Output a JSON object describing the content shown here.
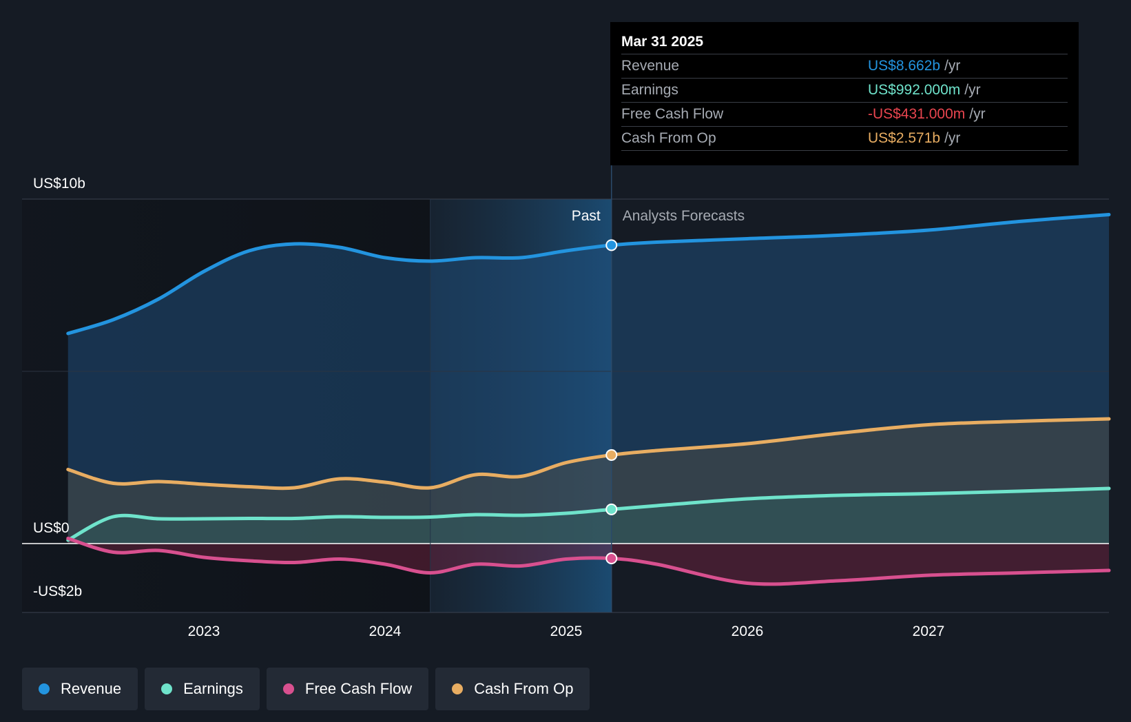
{
  "chart_data": {
    "type": "line",
    "y_axis_labels": [
      "US$10b",
      "US$0",
      "-US$2b"
    ],
    "ylim": [
      -2,
      10
    ],
    "x_ticks": [
      "2023",
      "2024",
      "2025",
      "2026",
      "2027"
    ],
    "past_label": "Past",
    "forecast_label": "Analysts Forecasts",
    "series": [
      {
        "name": "Revenue",
        "color": "#2394df",
        "points": [
          [
            2022.25,
            6.1
          ],
          [
            2022.5,
            6.5
          ],
          [
            2022.75,
            7.1
          ],
          [
            2023.0,
            7.9
          ],
          [
            2023.25,
            8.5
          ],
          [
            2023.5,
            8.7
          ],
          [
            2023.75,
            8.6
          ],
          [
            2024.0,
            8.3
          ],
          [
            2024.25,
            8.2
          ],
          [
            2024.5,
            8.3
          ],
          [
            2024.75,
            8.3
          ],
          [
            2025.0,
            8.5
          ],
          [
            2025.25,
            8.662
          ],
          [
            2025.5,
            8.75
          ],
          [
            2026.0,
            8.85
          ],
          [
            2026.5,
            8.95
          ],
          [
            2027.0,
            9.1
          ],
          [
            2027.5,
            9.35
          ],
          [
            2027.9,
            9.55
          ]
        ]
      },
      {
        "name": "Earnings",
        "color": "#6fe3cb",
        "points": [
          [
            2022.25,
            0.1
          ],
          [
            2022.5,
            0.78
          ],
          [
            2022.75,
            0.72
          ],
          [
            2023.0,
            0.72
          ],
          [
            2023.25,
            0.73
          ],
          [
            2023.5,
            0.73
          ],
          [
            2023.75,
            0.78
          ],
          [
            2024.0,
            0.76
          ],
          [
            2024.25,
            0.77
          ],
          [
            2024.5,
            0.84
          ],
          [
            2024.75,
            0.82
          ],
          [
            2025.0,
            0.88
          ],
          [
            2025.25,
            0.992
          ],
          [
            2025.5,
            1.1
          ],
          [
            2026.0,
            1.3
          ],
          [
            2026.5,
            1.4
          ],
          [
            2027.0,
            1.45
          ],
          [
            2027.5,
            1.52
          ],
          [
            2027.9,
            1.6
          ]
        ]
      },
      {
        "name": "Free Cash Flow",
        "color": "#d8508f",
        "points": [
          [
            2022.25,
            0.15
          ],
          [
            2022.5,
            -0.25
          ],
          [
            2022.75,
            -0.2
          ],
          [
            2023.0,
            -0.4
          ],
          [
            2023.25,
            -0.5
          ],
          [
            2023.5,
            -0.55
          ],
          [
            2023.75,
            -0.45
          ],
          [
            2024.0,
            -0.6
          ],
          [
            2024.25,
            -0.85
          ],
          [
            2024.5,
            -0.6
          ],
          [
            2024.75,
            -0.65
          ],
          [
            2025.0,
            -0.45
          ],
          [
            2025.25,
            -0.431
          ],
          [
            2025.5,
            -0.6
          ],
          [
            2026.0,
            -1.15
          ],
          [
            2026.5,
            -1.08
          ],
          [
            2027.0,
            -0.92
          ],
          [
            2027.5,
            -0.85
          ],
          [
            2027.9,
            -0.78
          ]
        ]
      },
      {
        "name": "Cash From Op",
        "color": "#e8ad62",
        "points": [
          [
            2022.25,
            2.15
          ],
          [
            2022.5,
            1.75
          ],
          [
            2022.75,
            1.8
          ],
          [
            2023.0,
            1.72
          ],
          [
            2023.25,
            1.65
          ],
          [
            2023.5,
            1.62
          ],
          [
            2023.75,
            1.88
          ],
          [
            2024.0,
            1.78
          ],
          [
            2024.25,
            1.62
          ],
          [
            2024.5,
            2.0
          ],
          [
            2024.75,
            1.95
          ],
          [
            2025.0,
            2.35
          ],
          [
            2025.25,
            2.571
          ],
          [
            2025.5,
            2.7
          ],
          [
            2026.0,
            2.9
          ],
          [
            2026.5,
            3.2
          ],
          [
            2027.0,
            3.45
          ],
          [
            2027.5,
            3.55
          ],
          [
            2027.9,
            3.62
          ]
        ]
      }
    ],
    "highlight_date": 2025.25,
    "shaded_past_start": 2024.25
  },
  "tooltip": {
    "date": "Mar 31 2025",
    "rows": [
      {
        "label": "Revenue",
        "value": "US$8.662b",
        "unit": "/yr",
        "color": "#2394df"
      },
      {
        "label": "Earnings",
        "value": "US$992.000m",
        "unit": "/yr",
        "color": "#6fe3cb"
      },
      {
        "label": "Free Cash Flow",
        "value": "-US$431.000m",
        "unit": "/yr",
        "color": "#e8454f"
      },
      {
        "label": "Cash From Op",
        "value": "US$2.571b",
        "unit": "/yr",
        "color": "#e8ad62"
      }
    ]
  },
  "legend": [
    {
      "label": "Revenue",
      "color": "#2394df"
    },
    {
      "label": "Earnings",
      "color": "#6fe3cb"
    },
    {
      "label": "Free Cash Flow",
      "color": "#d8508f"
    },
    {
      "label": "Cash From Op",
      "color": "#e8ad62"
    }
  ]
}
